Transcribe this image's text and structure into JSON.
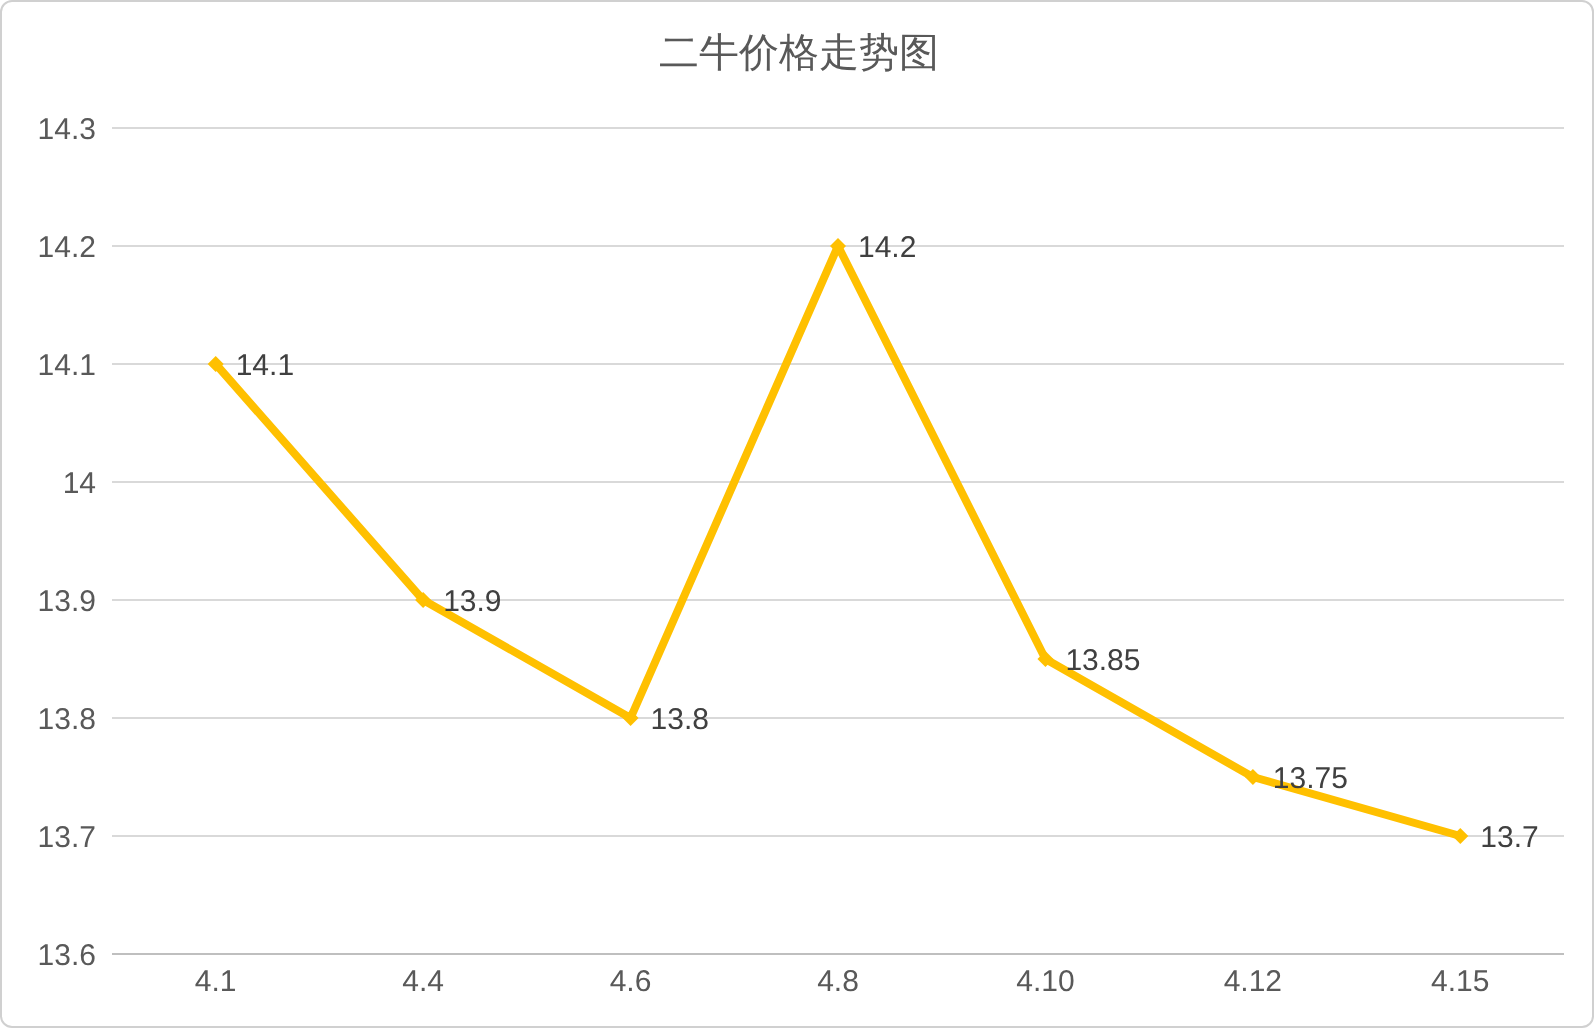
{
  "chart_data": {
    "type": "line",
    "title": "二牛价格走势图",
    "categories": [
      "4.1",
      "4.4",
      "4.6",
      "4.8",
      "4.10",
      "4.12",
      "4.15"
    ],
    "series": [
      {
        "color": "#ffc000",
        "values": [
          14.1,
          13.9,
          13.8,
          14.2,
          13.85,
          13.75,
          13.7
        ]
      }
    ],
    "ylim": [
      13.6,
      14.3
    ],
    "yticks": [
      13.6,
      13.7,
      13.8,
      13.9,
      14,
      14.1,
      14.2,
      14.3
    ],
    "grid": "y",
    "marker": "diamond",
    "line_style": "solid",
    "data_labels": true,
    "legend": false
  }
}
